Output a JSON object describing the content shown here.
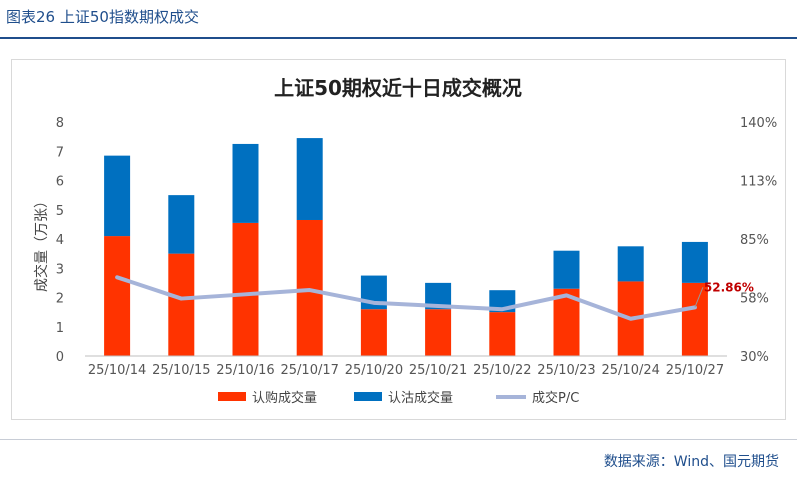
{
  "figure_title": "图表26 上证50指数期权成交",
  "source": "数据来源：Wind、国元期货",
  "chart_data": {
    "type": "bar",
    "title": "上证50期权近十日成交概况",
    "ylabel": "成交量（万张）",
    "categories": [
      "25/10/14",
      "25/10/15",
      "25/10/16",
      "25/10/17",
      "25/10/20",
      "25/10/21",
      "25/10/22",
      "25/10/23",
      "25/10/24",
      "25/10/27"
    ],
    "ylim": [
      0,
      8
    ],
    "yticks": [
      "0",
      "1",
      "2",
      "3",
      "4",
      "5",
      "6",
      "7",
      "8"
    ],
    "y2lim": [
      30,
      140
    ],
    "y2ticks": [
      "30%",
      "58%",
      "85%",
      "113%",
      "140%"
    ],
    "series": [
      {
        "name": "认购成交量",
        "kind": "bar-stack",
        "color": "#ff3300",
        "values": [
          4.1,
          3.5,
          4.55,
          4.65,
          1.6,
          1.6,
          1.5,
          2.3,
          2.55,
          2.5
        ]
      },
      {
        "name": "认沽成交量",
        "kind": "bar-stack",
        "color": "#0070c0",
        "values": [
          2.75,
          2.0,
          2.7,
          2.8,
          1.15,
          0.9,
          0.75,
          1.3,
          1.2,
          1.4
        ]
      },
      {
        "name": "成交P/C",
        "kind": "line",
        "axis": "right",
        "color": "#a6b4d9",
        "values": [
          67,
          57,
          59,
          61,
          55,
          53.5,
          52,
          58.5,
          47.5,
          52.86
        ]
      }
    ],
    "annotation": {
      "text": "52.86%",
      "color": "#c00000"
    },
    "legend": "bottom",
    "grid": false
  }
}
